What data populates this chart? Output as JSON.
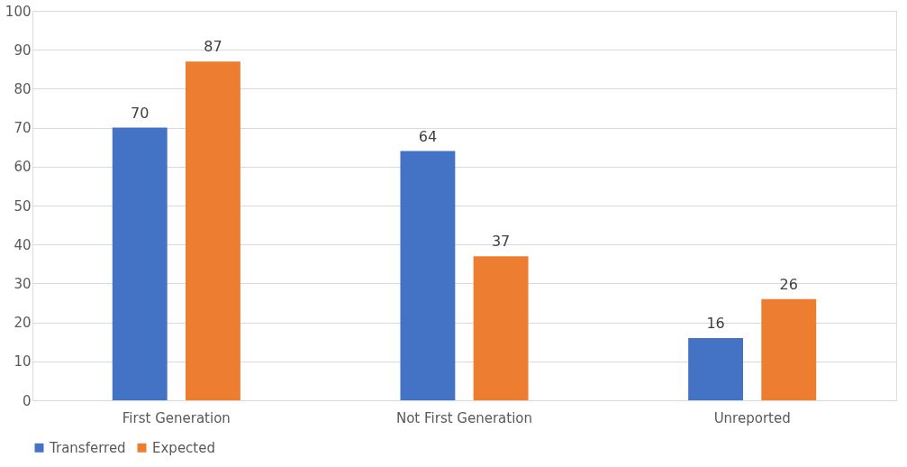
{
  "chart_data": {
    "type": "bar",
    "categories": [
      "First Generation",
      "Not First Generation",
      "Unreported"
    ],
    "series": [
      {
        "name": "Transferred",
        "color": "#4472c4",
        "values": [
          70,
          64,
          16
        ]
      },
      {
        "name": "Expected",
        "color": "#ed7d31",
        "values": [
          87,
          37,
          26
        ]
      }
    ],
    "ylim": [
      0,
      100
    ],
    "yticks": [
      0,
      10,
      20,
      30,
      40,
      50,
      60,
      70,
      80,
      90,
      100
    ],
    "grid": "y",
    "legend": "bottom",
    "data_labels": true
  }
}
